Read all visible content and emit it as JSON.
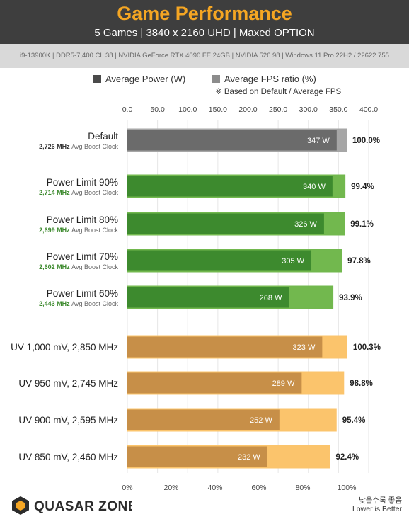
{
  "header": {
    "title": "Game Performance",
    "subtitle": "5 Games  |  3840 x 2160 UHD  |  Maxed OPTION",
    "specs": "i9-13900K  |  DDR5-7,400 CL 38  |  NVIDIA GeForce RTX 4090 FE 24GB  |  NVIDIA 526.98  |  Windows 11 Pro 22H2 / 22622.755"
  },
  "legend": {
    "power": "Average Power (W)",
    "fps": "Average FPS ratio (%)",
    "note": "※ Based on Default / Average FPS"
  },
  "footer": {
    "note_ko": "낮을수록 좋음",
    "note_en": "Lower is Better",
    "logo": "QUASAR ZONE"
  },
  "colors": {
    "default_dark": "#6b6b6b",
    "default_light": "#a6a6a6",
    "pl_dark": "#3d8a2e",
    "pl_light": "#72b84e",
    "uv_dark": "#c78f48",
    "uv_light": "#fbc46c",
    "accent": "#f5a623"
  },
  "chart_data": {
    "type": "bar",
    "orientation": "horizontal",
    "title": "Game Performance",
    "subtitle": "5 Games  |  3840 x 2160 UHD  |  Maxed OPTION",
    "top_axis": {
      "label": "Average Power (W)",
      "ticks": [
        "0.0",
        "50.0",
        "100.0",
        "150.0",
        "200.0",
        "250.0",
        "300.0",
        "350.0",
        "400.0"
      ],
      "range": [
        0,
        400
      ]
    },
    "bottom_axis": {
      "label": "Average FPS ratio (%)",
      "ticks": [
        "0%",
        "20%",
        "40%",
        "60%",
        "80%",
        "100%"
      ],
      "range": [
        0,
        100
      ]
    },
    "categories": [
      {
        "label": "Default",
        "sublabel": "2,726 MHz",
        "subunit": "Avg Boost Clock",
        "group": "default"
      },
      {
        "label": "Power Limit 90%",
        "sublabel": "2,714 MHz",
        "subunit": "Avg Boost Clock",
        "group": "pl"
      },
      {
        "label": "Power Limit 80%",
        "sublabel": "2,699 MHz",
        "subunit": "Avg Boost Clock",
        "group": "pl"
      },
      {
        "label": "Power Limit 70%",
        "sublabel": "2,602 MHz",
        "subunit": "Avg Boost Clock",
        "group": "pl"
      },
      {
        "label": "Power Limit 60%",
        "sublabel": "2,443 MHz",
        "subunit": "Avg Boost Clock",
        "group": "pl"
      },
      {
        "label": "UV 1,000 mV, 2,850 MHz",
        "group": "uv"
      },
      {
        "label": "UV 950 mV, 2,745 MHz",
        "group": "uv"
      },
      {
        "label": "UV 900 mV, 2,595 MHz",
        "group": "uv"
      },
      {
        "label": "UV 850 mV, 2,460 MHz",
        "group": "uv"
      }
    ],
    "series": [
      {
        "name": "Average Power (W)",
        "values": [
          347,
          340,
          326,
          305,
          268,
          323,
          289,
          252,
          232
        ],
        "labels": [
          "347 W",
          "340 W",
          "326 W",
          "305 W",
          "268 W",
          "323 W",
          "289 W",
          "252 W",
          "232 W"
        ]
      },
      {
        "name": "Average FPS ratio (%)",
        "values": [
          100.0,
          99.4,
          99.1,
          97.8,
          93.9,
          100.3,
          98.8,
          95.4,
          92.4
        ],
        "labels": [
          "100.0%",
          "99.4%",
          "99.1%",
          "97.8%",
          "93.9%",
          "100.3%",
          "98.8%",
          "95.4%",
          "92.4%"
        ]
      }
    ]
  }
}
